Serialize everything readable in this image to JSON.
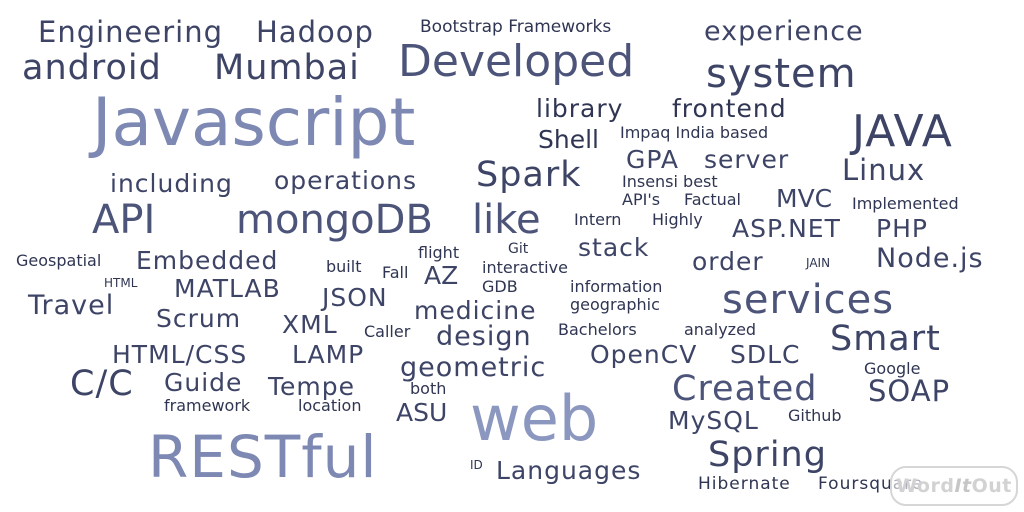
{
  "words": {
    "engineering": "Engineering",
    "hadoop": "Hadoop",
    "bootstrap_frameworks": "Bootstrap Frameworks",
    "experience": "experience",
    "android": "android",
    "mumbai": "Mumbai",
    "developed": "Developed",
    "system": "system",
    "javascript": "Javascript",
    "library": "library",
    "frontend": "frontend",
    "shell": "Shell",
    "impaq_india_based": "Impaq India based",
    "java": "JAVA",
    "gpa": "GPA",
    "server": "server",
    "linux": "Linux",
    "including": "including",
    "operations": "operations",
    "spark": "Spark",
    "insensi_best": "Insensi best",
    "apis": "API's",
    "factual": "Factual",
    "mvc": "MVC",
    "implemented": "Implemented",
    "api": "API",
    "mongodb": "mongoDB",
    "like": "like",
    "intern": "Intern",
    "highly": "Highly",
    "asp_net": "ASP.NET",
    "php": "PHP",
    "geospatial": "Geospatial",
    "embedded": "Embedded",
    "flight": "flight",
    "git": "Git",
    "stack": "stack",
    "order": "order",
    "jain": "JAIN",
    "nodejs": "Node.js",
    "html": "HTML",
    "built": "built",
    "fall": "Fall",
    "az": "AZ",
    "interactive": "interactive",
    "gdb": "GDB",
    "information": "information",
    "matlab": "MATLAB",
    "json": "JSON",
    "travel": "Travel",
    "medicine": "medicine",
    "geographic": "geographic",
    "services": "services",
    "scrum": "Scrum",
    "xml": "XML",
    "caller": "Caller",
    "design": "design",
    "bachelors": "Bachelors",
    "analyzed": "analyzed",
    "smart": "Smart",
    "html_css": "HTML/CSS",
    "lamp": "LAMP",
    "opencv": "OpenCV",
    "sdlc": "SDLC",
    "geometric": "geometric",
    "google": "Google",
    "cc": "C/C",
    "guide": "Guide",
    "tempe": "Tempe",
    "both": "both",
    "created": "Created",
    "soap": "SOAP",
    "framework": "framework",
    "location": "location",
    "asu": "ASU",
    "web": "web",
    "mysql": "MySQL",
    "github": "Github",
    "restful": "RESTful",
    "id": "ID",
    "languages": "Languages",
    "spring": "Spring",
    "hibernate": "Hibernate",
    "foursquare": "Foursquare"
  },
  "badge": {
    "part1": "Word",
    "part2": "It",
    "part3": "Out"
  },
  "colors": {
    "dark": "#3d4466",
    "medium": "#4c5479",
    "light": "#7d88b3",
    "lightest": "#8c97c0"
  }
}
